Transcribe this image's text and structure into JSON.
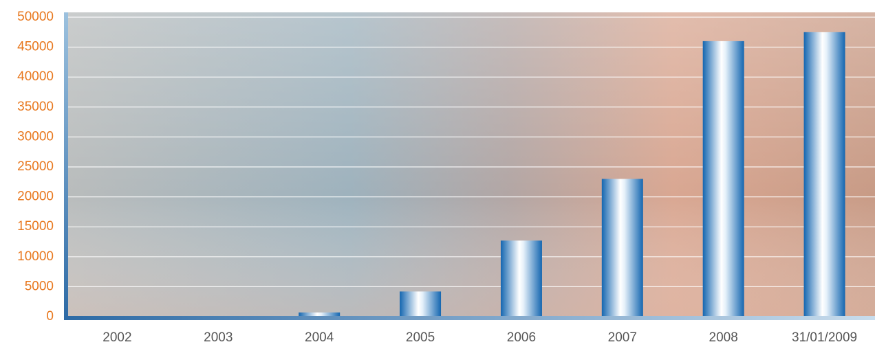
{
  "chart_data": {
    "type": "bar",
    "categories": [
      "2002",
      "2003",
      "2004",
      "2005",
      "2006",
      "2007",
      "2008",
      "31/01/2009"
    ],
    "values": [
      0,
      0,
      700,
      4200,
      12700,
      23000,
      46000,
      47500
    ],
    "color": "#1466b0",
    "ylim": [
      0,
      50000
    ],
    "yticks": [
      0,
      5000,
      10000,
      15000,
      20000,
      25000,
      30000,
      35000,
      40000,
      45000,
      50000
    ],
    "grid": true
  }
}
